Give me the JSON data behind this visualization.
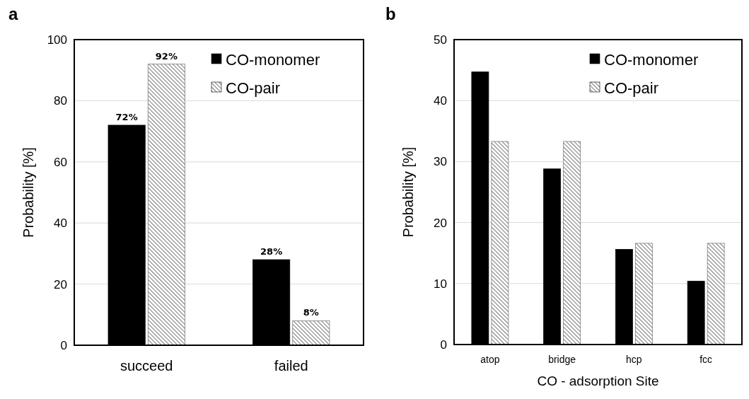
{
  "chart_data": [
    {
      "type": "bar",
      "title": "a",
      "ylabel": "Probability  [%]",
      "categories": [
        "succeed",
        "failed"
      ],
      "series": [
        {
          "name": "CO-monomer",
          "color": "#000000",
          "values": [
            72,
            28
          ],
          "value_labels": [
            "72%",
            "28%"
          ]
        },
        {
          "name": "CO-pair",
          "color": "#808080",
          "type": "bar",
          "values": [
            92,
            8
          ],
          "value_labels": [
            "92%",
            "8%"
          ]
        }
      ],
      "ylim": [
        0,
        100
      ],
      "yticks": [
        0,
        20,
        40,
        60,
        80,
        100
      ],
      "grid": "y",
      "legend": "top right"
    },
    {
      "type": "bar",
      "title": "b",
      "ylabel": "Probability  [%]",
      "xlabel": "CO - adsorption  Site",
      "categories": [
        "atop",
        "bridge",
        "hcp",
        "fcc"
      ],
      "series": [
        {
          "name": "CO-monomer",
          "color": "#000000",
          "values": [
            44.7,
            28.8,
            15.6,
            10.4
          ]
        },
        {
          "name": "CO-pair",
          "color": "#808080",
          "values": [
            33.3,
            33.3,
            16.6,
            16.6
          ]
        }
      ],
      "ylim": [
        0,
        50
      ],
      "yticks": [
        0,
        10,
        20,
        30,
        40,
        50
      ],
      "grid": "y",
      "legend": "top right"
    }
  ]
}
